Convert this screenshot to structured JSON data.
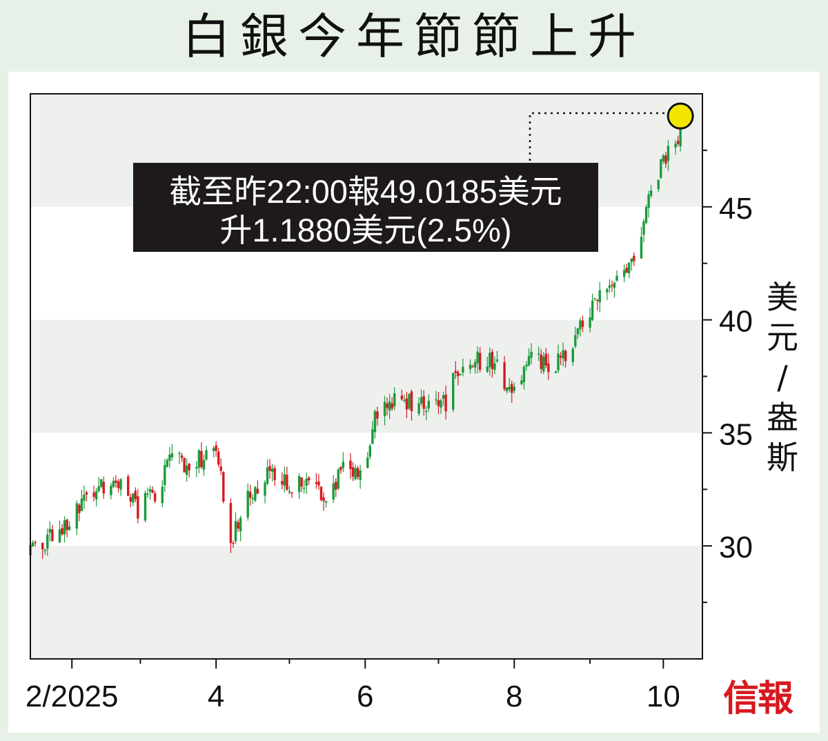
{
  "title": "白銀今年節節上升",
  "logo_text": "信報",
  "annotation": {
    "line1": "截至昨22:00報49.0185美元",
    "line2": "升1.1880美元(2.5%)"
  },
  "colors": {
    "up": "#1a9a3a",
    "down": "#d7191f",
    "band": "#eef0ee",
    "highlight": "#f2e600",
    "annotation_bg": "#1e1a1a",
    "logo": "#d7191f"
  },
  "chart_data": {
    "type": "candlestick",
    "title": "白銀今年節節上升",
    "ylabel": "美元/盎斯",
    "ylim": [
      25,
      50
    ],
    "yticks": [
      30,
      35,
      40,
      45
    ],
    "xticks": [
      "2/2025",
      "4",
      "6",
      "8",
      "10"
    ],
    "x_range": [
      "2025-01-15",
      "2025-10-17"
    ],
    "latest": {
      "date": "2025-10-08",
      "close": 49.0185,
      "change": 1.188,
      "change_pct": 2.5
    },
    "trend": [
      [
        "2025-01-15",
        29.8
      ],
      [
        "2025-01-23",
        30.4
      ],
      [
        "2025-01-31",
        30.9
      ],
      [
        "2025-02-07",
        32.2
      ],
      [
        "2025-02-14",
        32.6
      ],
      [
        "2025-02-21",
        32.9
      ],
      [
        "2025-02-28",
        31.5
      ],
      [
        "2025-03-07",
        32.4
      ],
      [
        "2025-03-14",
        33.8
      ],
      [
        "2025-03-21",
        33.6
      ],
      [
        "2025-03-28",
        34.0
      ],
      [
        "2025-04-02",
        33.9
      ],
      [
        "2025-04-04",
        32.0
      ],
      [
        "2025-04-07",
        29.7
      ],
      [
        "2025-04-10",
        31.2
      ],
      [
        "2025-04-17",
        32.6
      ],
      [
        "2025-04-24",
        33.5
      ],
      [
        "2025-05-01",
        32.5
      ],
      [
        "2025-05-09",
        32.8
      ],
      [
        "2025-05-16",
        32.3
      ],
      [
        "2025-05-23",
        33.4
      ],
      [
        "2025-05-30",
        33.1
      ],
      [
        "2025-06-05",
        35.6
      ],
      [
        "2025-06-09",
        36.2
      ],
      [
        "2025-06-13",
        36.4
      ],
      [
        "2025-06-20",
        36.3
      ],
      [
        "2025-06-27",
        36.1
      ],
      [
        "2025-07-04",
        36.4
      ],
      [
        "2025-07-11",
        38.3
      ],
      [
        "2025-07-18",
        38.2
      ],
      [
        "2025-07-25",
        38.1
      ],
      [
        "2025-07-31",
        36.6
      ],
      [
        "2025-08-08",
        38.2
      ],
      [
        "2025-08-15",
        37.9
      ],
      [
        "2025-08-22",
        38.3
      ],
      [
        "2025-08-29",
        39.8
      ],
      [
        "2025-09-05",
        40.9
      ],
      [
        "2025-09-12",
        42.0
      ],
      [
        "2025-09-19",
        42.8
      ],
      [
        "2025-09-26",
        45.8
      ],
      [
        "2025-10-01",
        47.1
      ],
      [
        "2025-10-08",
        48.4
      ]
    ]
  }
}
